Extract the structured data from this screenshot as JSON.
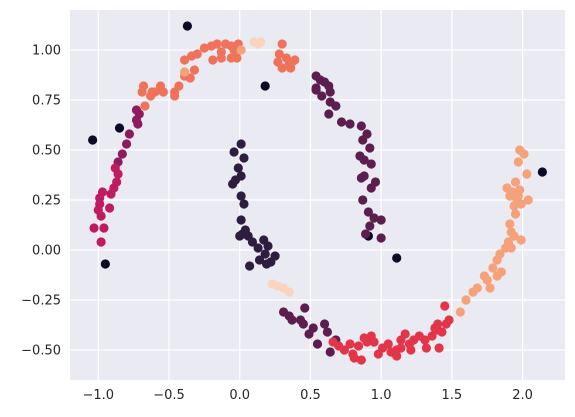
{
  "chart_data": {
    "type": "scatter",
    "title": "",
    "xlabel": "",
    "ylabel": "",
    "xlim": [
      -1.2,
      2.3
    ],
    "ylim": [
      -0.65,
      1.2
    ],
    "xticks": [
      -1.0,
      -0.5,
      0.0,
      0.5,
      1.0,
      1.5,
      2.0
    ],
    "xtick_labels": [
      "−1.0",
      "−0.5",
      "0.0",
      "0.5",
      "1.0",
      "1.5",
      "2.0"
    ],
    "yticks": [
      -0.5,
      -0.25,
      0.0,
      0.25,
      0.5,
      0.75,
      1.0
    ],
    "ytick_labels": [
      "−0.50",
      "−0.25",
      "0.00",
      "0.25",
      "0.50",
      "0.75",
      "1.00"
    ],
    "grid": true,
    "legend": "none",
    "colors": {
      "background": "#eaeaf2",
      "grid": "#ffffff",
      "noise": "#0b0924",
      "c0": "#2d1d3e",
      "c1": "#5c1e4f",
      "c2": "#8f1b5e",
      "c3": "#c01a60",
      "c4": "#e23549",
      "c5": "#f0725a",
      "c6": "#f5a17a",
      "c7": "#f9d5c0"
    },
    "series": [
      {
        "color_key": "noise",
        "points": [
          [
            -0.37,
            1.12
          ],
          [
            0.18,
            0.82
          ],
          [
            -1.04,
            0.55
          ],
          [
            -0.85,
            0.61
          ],
          [
            -0.95,
            -0.07
          ],
          [
            1.11,
            -0.04
          ],
          [
            2.14,
            0.39
          ],
          [
            0.91,
            0.07
          ]
        ]
      },
      {
        "color_key": "c0",
        "points": [
          [
            0.01,
            0.53
          ],
          [
            -0.04,
            0.49
          ],
          [
            0.03,
            0.46
          ],
          [
            -0.01,
            0.41
          ],
          [
            0.01,
            0.37
          ],
          [
            -0.05,
            0.33
          ],
          [
            -0.03,
            0.35
          ],
          [
            0.01,
            0.27
          ],
          [
            0.03,
            0.23
          ],
          [
            0.01,
            0.15
          ],
          [
            0.04,
            0.1
          ],
          [
            0.06,
            0.07
          ],
          [
            0.02,
            0.08
          ],
          [
            0.0,
            0.07
          ],
          [
            0.09,
            0.04
          ],
          [
            0.13,
            0.01
          ],
          [
            0.17,
            0.05
          ],
          [
            0.2,
            0.02
          ],
          [
            0.18,
            -0.02
          ],
          [
            0.14,
            -0.05
          ],
          [
            0.07,
            -0.08
          ],
          [
            0.22,
            -0.06
          ],
          [
            0.25,
            -0.03
          ],
          [
            0.19,
            -0.07
          ]
        ]
      },
      {
        "color_key": "c1",
        "points": [
          [
            0.54,
            0.87
          ],
          [
            0.57,
            0.85
          ],
          [
            0.6,
            0.84
          ],
          [
            0.63,
            0.82
          ],
          [
            0.54,
            0.81
          ],
          [
            0.64,
            0.79
          ],
          [
            0.54,
            0.8
          ],
          [
            0.58,
            0.77
          ],
          [
            0.64,
            0.74
          ],
          [
            0.68,
            0.72
          ],
          [
            0.63,
            0.68
          ],
          [
            0.72,
            0.64
          ],
          [
            0.78,
            0.63
          ],
          [
            0.86,
            0.62
          ],
          [
            0.9,
            0.58
          ],
          [
            0.87,
            0.55
          ],
          [
            0.92,
            0.51
          ],
          [
            0.85,
            0.47
          ],
          [
            0.88,
            0.45
          ],
          [
            0.93,
            0.43
          ],
          [
            0.88,
            0.37
          ],
          [
            0.86,
            0.36
          ],
          [
            0.96,
            0.34
          ],
          [
            0.93,
            0.31
          ],
          [
            0.87,
            0.25
          ],
          [
            0.91,
            0.19
          ],
          [
            0.95,
            0.16
          ],
          [
            1.0,
            0.15
          ],
          [
            0.92,
            0.12
          ],
          [
            1.0,
            0.06
          ],
          [
            0.89,
            0.08
          ],
          [
            0.31,
            -0.31
          ],
          [
            0.35,
            -0.33
          ],
          [
            0.37,
            -0.35
          ],
          [
            0.43,
            -0.35
          ],
          [
            0.45,
            -0.37
          ],
          [
            0.46,
            -0.29
          ],
          [
            0.52,
            -0.39
          ],
          [
            0.49,
            -0.42
          ],
          [
            0.6,
            -0.37
          ],
          [
            0.62,
            -0.41
          ],
          [
            0.68,
            -0.45
          ],
          [
            0.55,
            -0.47
          ],
          [
            0.64,
            -0.51
          ]
        ]
      },
      {
        "color_key": "c2",
        "points": [
          [
            -0.72,
            0.63
          ],
          [
            -0.71,
            0.68
          ],
          [
            -0.73,
            0.65
          ],
          [
            -0.73,
            0.7
          ],
          [
            -0.78,
            0.58
          ],
          [
            -0.8,
            0.53
          ],
          [
            -0.83,
            0.48
          ],
          [
            -0.86,
            0.44
          ]
        ]
      },
      {
        "color_key": "c3",
        "points": [
          [
            -0.88,
            0.41
          ],
          [
            -0.86,
            0.38
          ],
          [
            -0.87,
            0.34
          ],
          [
            -0.89,
            0.31
          ],
          [
            -0.91,
            0.28
          ],
          [
            -0.97,
            0.29
          ],
          [
            -0.99,
            0.26
          ],
          [
            -0.99,
            0.23
          ],
          [
            -0.92,
            0.21
          ],
          [
            -1.0,
            0.2
          ],
          [
            -0.98,
            0.17
          ],
          [
            -1.03,
            0.11
          ],
          [
            -0.96,
            0.11
          ],
          [
            -0.98,
            0.04
          ]
        ]
      },
      {
        "color_key": "c4",
        "points": [
          [
            0.66,
            -0.46
          ],
          [
            0.7,
            -0.48
          ],
          [
            0.74,
            -0.5
          ],
          [
            0.78,
            -0.47
          ],
          [
            0.8,
            -0.52
          ],
          [
            0.84,
            -0.48
          ],
          [
            0.81,
            -0.54
          ],
          [
            0.86,
            -0.55
          ],
          [
            0.88,
            -0.44
          ],
          [
            0.9,
            -0.46
          ],
          [
            0.93,
            -0.43
          ],
          [
            0.95,
            -0.46
          ],
          [
            0.98,
            -0.52
          ],
          [
            1.01,
            -0.49
          ],
          [
            1.05,
            -0.47
          ],
          [
            1.07,
            -0.51
          ],
          [
            1.11,
            -0.5
          ],
          [
            1.11,
            -0.53
          ],
          [
            1.14,
            -0.49
          ],
          [
            1.14,
            -0.45
          ],
          [
            1.17,
            -0.42
          ],
          [
            1.2,
            -0.47
          ],
          [
            1.21,
            -0.5
          ],
          [
            1.23,
            -0.45
          ],
          [
            1.27,
            -0.43
          ],
          [
            1.31,
            -0.45
          ],
          [
            1.32,
            -0.49
          ],
          [
            1.36,
            -0.43
          ],
          [
            1.38,
            -0.39
          ],
          [
            1.4,
            -0.4
          ],
          [
            1.43,
            -0.41
          ],
          [
            1.46,
            -0.37
          ],
          [
            1.48,
            -0.35
          ],
          [
            1.45,
            -0.28
          ],
          [
            1.41,
            -0.49
          ],
          [
            1.4,
            -0.37
          ]
        ]
      },
      {
        "color_key": "c5",
        "points": [
          [
            -0.39,
            0.95
          ],
          [
            -0.34,
            0.97
          ],
          [
            -0.3,
            0.98
          ],
          [
            -0.25,
            1.01
          ],
          [
            -0.2,
            1.02
          ],
          [
            -0.16,
            1.03
          ],
          [
            -0.1,
            1.03
          ],
          [
            -0.06,
            1.02
          ],
          [
            -0.04,
            1.0
          ],
          [
            -0.13,
            0.99
          ],
          [
            -0.02,
            0.96
          ],
          [
            -0.19,
            0.95
          ],
          [
            -0.13,
            0.96
          ],
          [
            -0.06,
            0.96
          ],
          [
            -0.01,
            1.03
          ],
          [
            0.3,
            1.03
          ],
          [
            0.28,
            0.98
          ],
          [
            0.33,
            0.96
          ],
          [
            0.37,
            0.94
          ],
          [
            0.36,
            0.91
          ],
          [
            0.3,
            0.91
          ],
          [
            0.39,
            0.95
          ],
          [
            0.27,
            0.94
          ],
          [
            0.35,
            0.93
          ],
          [
            -0.32,
            0.9
          ],
          [
            -0.39,
            0.87
          ],
          [
            -0.35,
            0.86
          ],
          [
            -0.43,
            0.82
          ],
          [
            -0.46,
            0.79
          ],
          [
            -0.46,
            0.77
          ],
          [
            -0.54,
            0.79
          ],
          [
            -0.56,
            0.82
          ],
          [
            -0.63,
            0.77
          ],
          [
            -0.68,
            0.82
          ],
          [
            -0.69,
            0.79
          ],
          [
            -0.67,
            0.72
          ],
          [
            -0.62,
            0.79
          ],
          [
            -0.6,
            0.79
          ]
        ]
      },
      {
        "color_key": "c6",
        "points": [
          [
            0.01,
            1.0
          ],
          [
            -0.39,
            0.89
          ],
          [
            1.56,
            -0.31
          ],
          [
            1.6,
            -0.25
          ],
          [
            1.65,
            -0.21
          ],
          [
            1.68,
            -0.19
          ],
          [
            1.75,
            -0.15
          ],
          [
            1.73,
            -0.13
          ],
          [
            1.79,
            -0.09
          ],
          [
            1.82,
            -0.05
          ],
          [
            1.84,
            -0.02
          ],
          [
            1.88,
            0.01
          ],
          [
            1.9,
            0.04
          ],
          [
            1.92,
            0.09
          ],
          [
            1.94,
            0.07
          ],
          [
            1.91,
            0.13
          ],
          [
            1.95,
            0.18
          ],
          [
            1.99,
            0.23
          ],
          [
            1.97,
            0.27
          ],
          [
            2.04,
            0.25
          ],
          [
            2.03,
            0.38
          ],
          [
            1.97,
            0.44
          ],
          [
            1.98,
            0.5
          ],
          [
            2.01,
            0.48
          ],
          [
            1.93,
            0.29
          ],
          [
            1.98,
            0.3
          ],
          [
            1.95,
            0.34
          ],
          [
            1.89,
            0.31
          ],
          [
            1.91,
            0.27
          ],
          [
            1.94,
            0.22
          ],
          [
            1.96,
            0.25
          ],
          [
            1.99,
            0.05
          ],
          [
            1.92,
            0.01
          ],
          [
            1.85,
            -0.11
          ],
          [
            1.82,
            -0.13
          ],
          [
            1.77,
            -0.19
          ]
        ]
      },
      {
        "color_key": "c7",
        "points": [
          [
            0.1,
            1.04
          ],
          [
            0.13,
            1.03
          ],
          [
            0.15,
            1.04
          ],
          [
            0.27,
            -0.18
          ],
          [
            0.31,
            -0.19
          ],
          [
            0.35,
            -0.21
          ],
          [
            0.23,
            -0.17
          ]
        ]
      }
    ]
  }
}
